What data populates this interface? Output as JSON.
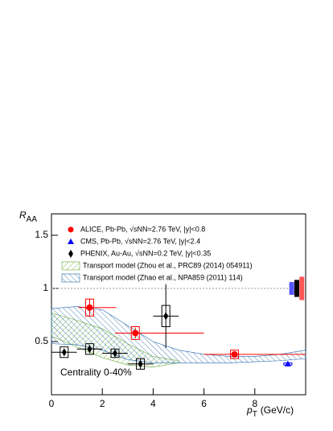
{
  "chart_data": {
    "type": "scatter",
    "ylabel": {
      "main": "R",
      "sub": "AA"
    },
    "xlabel": {
      "main": "p",
      "sub": "T",
      "unit": "(GeV/c)"
    },
    "xlim": [
      0,
      10
    ],
    "ylim": [
      0,
      1.7
    ],
    "xticks": [
      0,
      2,
      4,
      6,
      8
    ],
    "yticks": [
      0.5,
      1,
      1.5
    ],
    "reference_line": 1,
    "annotation": "Centrality 0-40%",
    "series": [
      {
        "name": "ALICE, Pb-Pb, √sNN=2.76 TeV, |y|<0.8",
        "color": "#ff0000",
        "marker": "circle",
        "x": [
          1.5,
          3.3,
          7.2
        ],
        "values": [
          0.82,
          0.58,
          0.38
        ],
        "x_low": [
          1.05,
          2.5,
          6
        ],
        "x_high": [
          2.55,
          6,
          10
        ],
        "yerr": [
          0.08,
          0.05,
          0.02
        ],
        "syst": [
          0.08,
          0.06,
          0.04
        ]
      },
      {
        "name": "CMS, Pb-Pb, √sNN=2.76 TeV, |y|<2.4",
        "color": "#0000ff",
        "marker": "triangle",
        "x": [
          9.3
        ],
        "values": [
          0.29
        ],
        "x_low": [
          9.3
        ],
        "x_high": [
          9.3
        ],
        "yerr": [
          0.01
        ],
        "syst": [
          0.01
        ]
      },
      {
        "name": "PHENIX, Au-Au, √sNN=0.2 TeV, |y|<0.35",
        "color": "#000000",
        "marker": "diamond",
        "x": [
          0.5,
          1.5,
          2.5,
          3.5,
          4.5
        ],
        "values": [
          0.4,
          0.43,
          0.39,
          0.29,
          0.74
        ],
        "x_low": [
          0,
          1,
          2,
          3,
          4
        ],
        "x_high": [
          1,
          2,
          3,
          4,
          5
        ],
        "yerr": [
          0.03,
          0.04,
          0.04,
          0.05,
          0.3
        ],
        "syst": [
          0.05,
          0.05,
          0.04,
          0.05,
          0.1
        ]
      }
    ],
    "bands": [
      {
        "name": "Transport model (Zhou et al., PRC89 (2014) 054911)",
        "color": "#66aa33",
        "x": [
          0,
          1,
          2,
          3,
          4,
          5
        ],
        "upper": [
          0.77,
          0.7,
          0.62,
          0.48,
          0.36,
          0.32
        ],
        "lower": [
          0.55,
          0.45,
          0.35,
          0.28,
          0.26,
          0.3
        ]
      },
      {
        "name": "Transport model (Zhao et al., NPA859 (2011) 114)",
        "color": "#2266aa",
        "x": [
          0,
          1,
          2,
          3,
          4,
          5,
          6,
          7,
          8,
          9,
          10
        ],
        "upper": [
          0.81,
          0.83,
          0.8,
          0.65,
          0.5,
          0.42,
          0.38,
          0.36,
          0.36,
          0.38,
          0.42
        ],
        "lower": [
          0.48,
          0.47,
          0.42,
          0.33,
          0.3,
          0.3,
          0.3,
          0.3,
          0.31,
          0.32,
          0.34
        ]
      }
    ],
    "global_uncertainty": {
      "center": 1,
      "errors": [
        0.06,
        0.08,
        0.11
      ],
      "colors": [
        "#5555ff",
        "#000000",
        "#ff5555"
      ],
      "x": [
        9.45,
        9.65,
        9.85
      ]
    }
  }
}
